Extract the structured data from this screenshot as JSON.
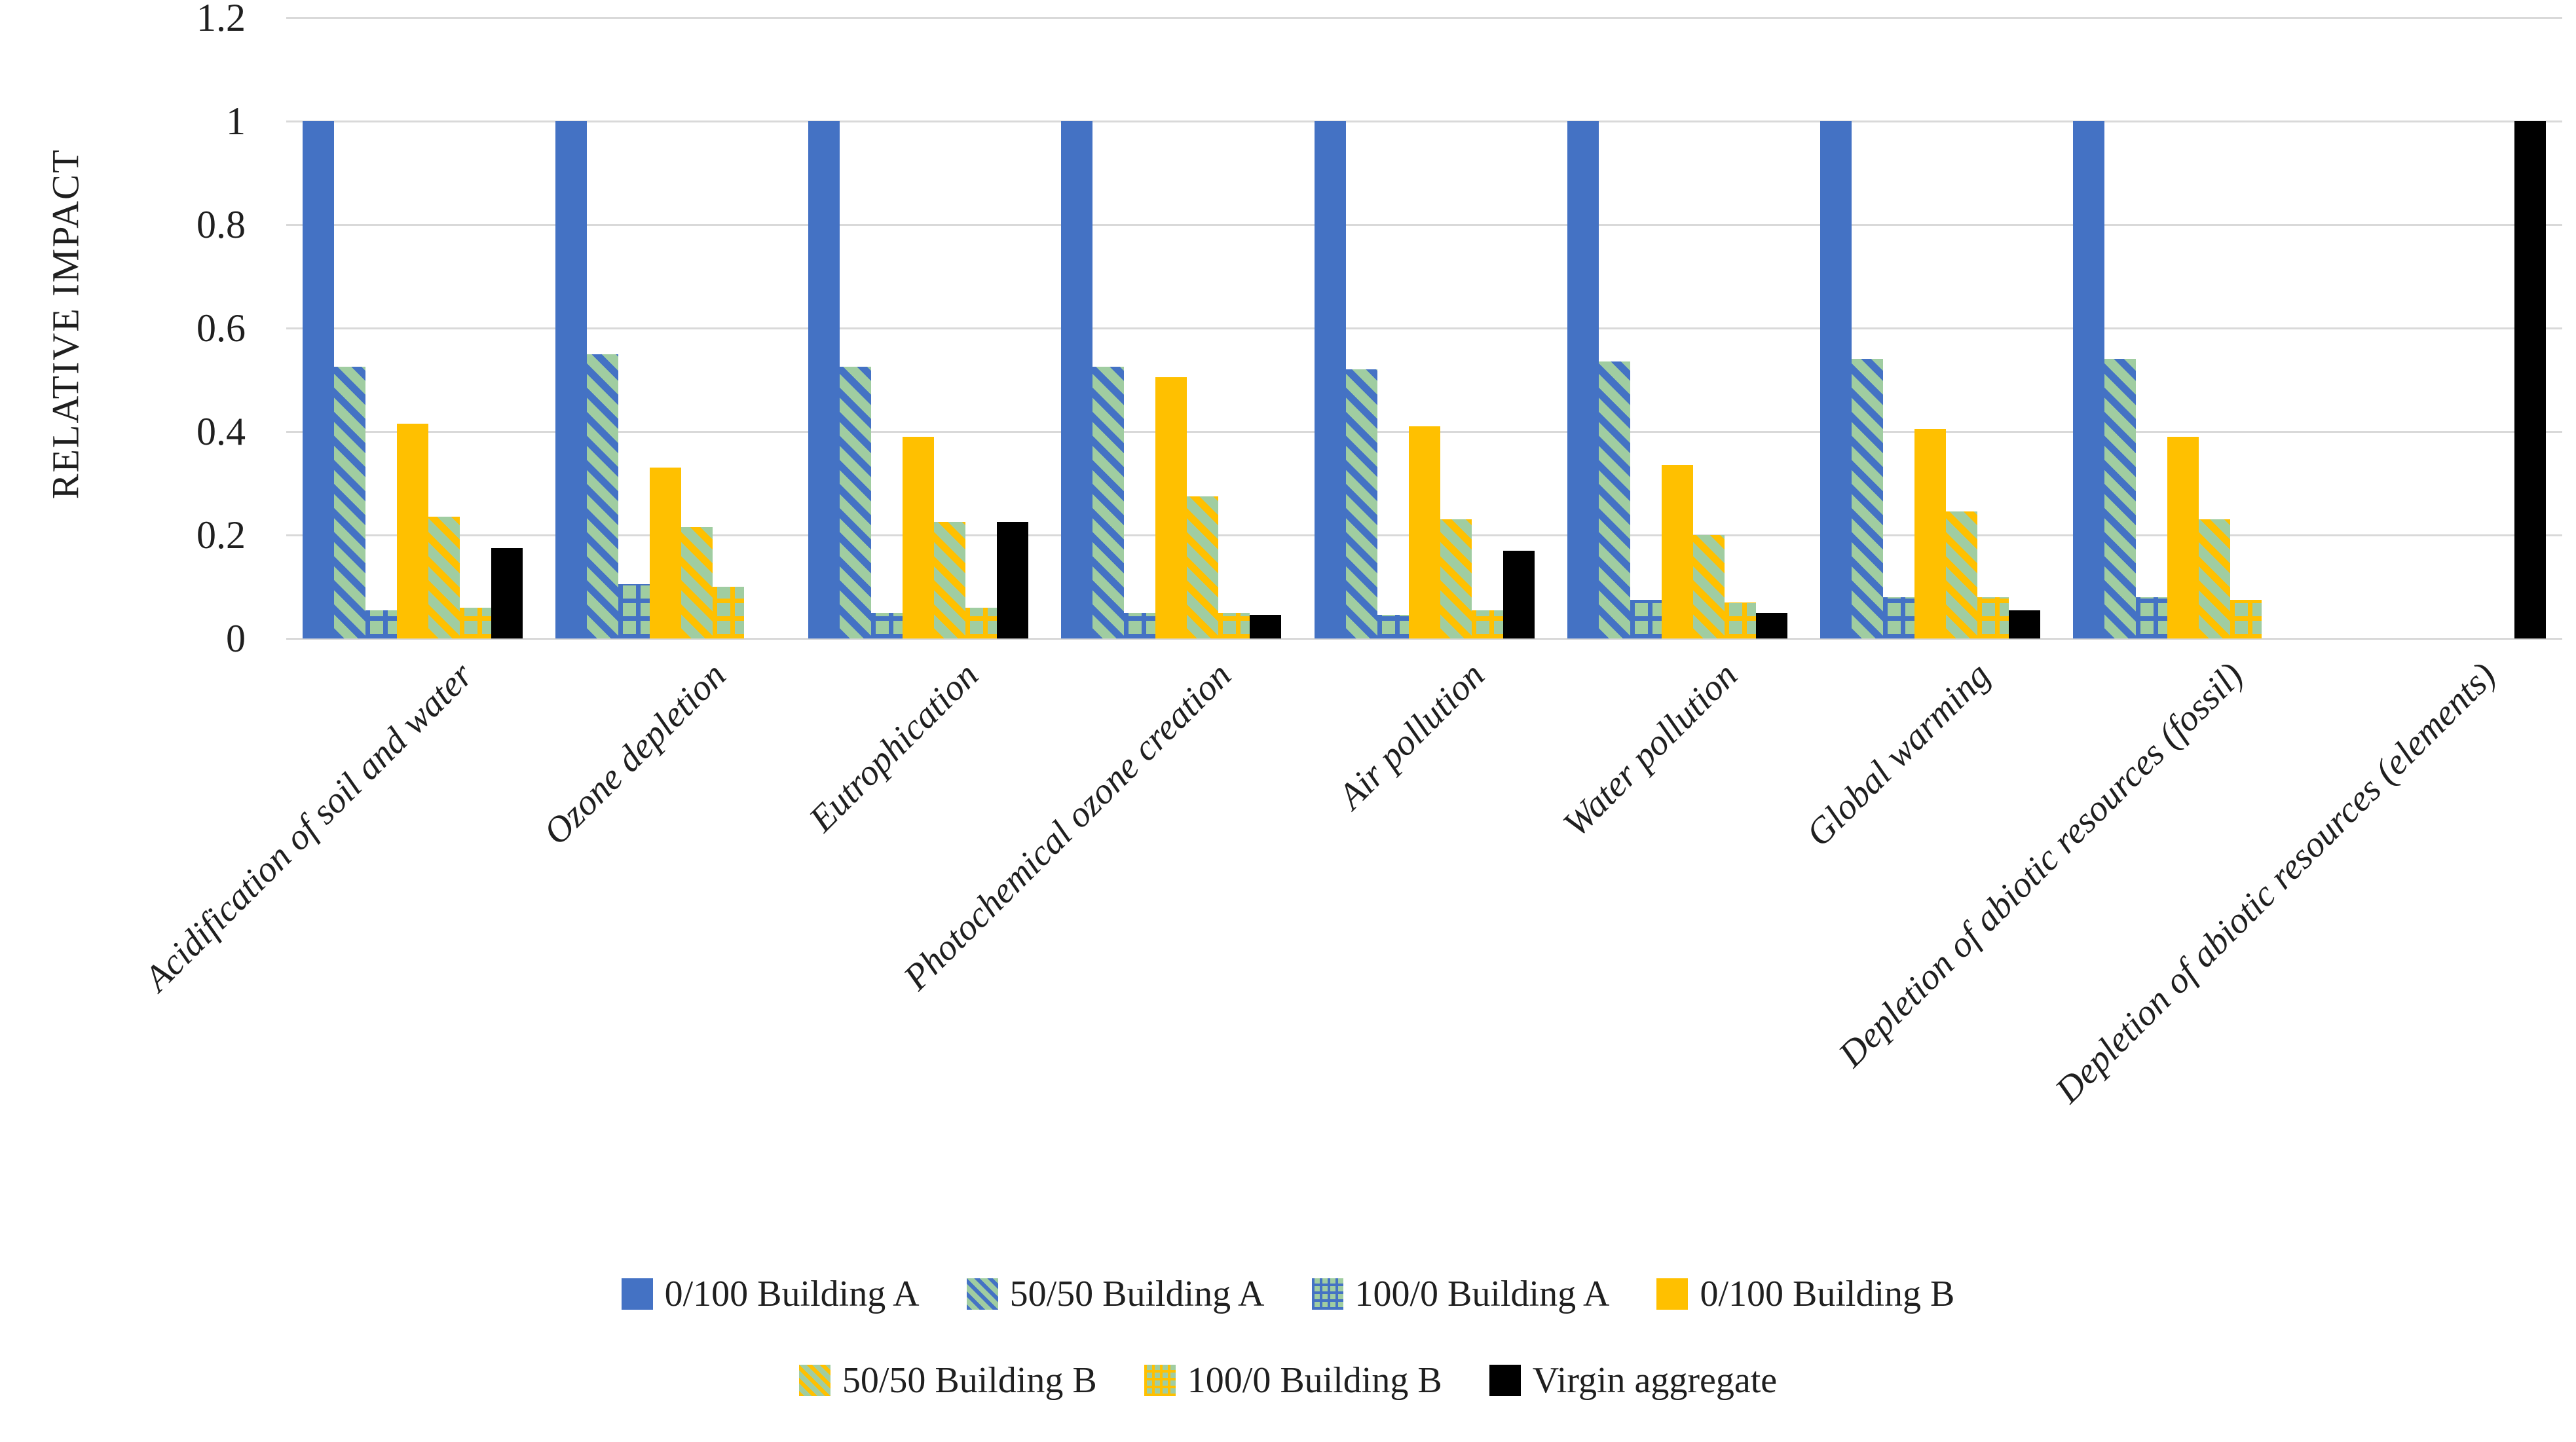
{
  "figure": {
    "background": "#FFFFFF",
    "text_color": "#1F1F1F",
    "gridline_color": "#D9D9D9"
  },
  "chart_data": {
    "type": "bar",
    "title": "",
    "xlabel": "",
    "ylabel": "RELATIVE IMPACT",
    "ylim": [
      0,
      1.2
    ],
    "grid": "horizontal",
    "legend_position": "bottom",
    "yticks": [
      {
        "label": "0",
        "value": 0
      },
      {
        "label": "0.2",
        "value": 0.2
      },
      {
        "label": "0.4",
        "value": 0.4
      },
      {
        "label": "0.6",
        "value": 0.6
      },
      {
        "label": "0.8",
        "value": 0.8
      },
      {
        "label": "1",
        "value": 1
      },
      {
        "label": "1.2",
        "value": 1.2
      }
    ],
    "categories": [
      "Acidification of soil and water",
      "Ozone depletion",
      "Eutrophication",
      "Photochemical ozone creation",
      "Air pollution",
      "Water pollution",
      "Global warming",
      "Depletion of abiotic resources (fossil)",
      "Depletion of abiotic resources (elements)"
    ],
    "series": [
      {
        "name": "0/100 Building A",
        "pattern": "solid",
        "color": "#4472C4",
        "values": [
          1,
          1,
          1,
          1,
          1,
          1,
          1,
          1,
          0
        ]
      },
      {
        "name": "50/50 Building A",
        "pattern": "diagonal-stripe",
        "fg": "#4472C4",
        "bg": "#A0CDA1",
        "values": [
          0.525,
          0.55,
          0.525,
          0.525,
          0.52,
          0.535,
          0.54,
          0.54,
          0
        ]
      },
      {
        "name": "100/0 Building A",
        "pattern": "grid",
        "fg": "#4472C4",
        "bg": "#A0CDA1",
        "values": [
          0.055,
          0.105,
          0.05,
          0.05,
          0.045,
          0.075,
          0.08,
          0.08,
          0
        ]
      },
      {
        "name": "0/100 Building B",
        "pattern": "solid",
        "color": "#FFC000",
        "values": [
          0.415,
          0.33,
          0.39,
          0.505,
          0.41,
          0.335,
          0.405,
          0.39,
          0
        ]
      },
      {
        "name": "50/50 Building B",
        "pattern": "diagonal-stripe",
        "fg": "#FFC000",
        "bg": "#A0CDA1",
        "values": [
          0.235,
          0.215,
          0.225,
          0.275,
          0.23,
          0.2,
          0.245,
          0.23,
          0
        ]
      },
      {
        "name": "100/0 Building B",
        "pattern": "grid",
        "fg": "#FFC000",
        "bg": "#A0CDA1",
        "values": [
          0.06,
          0.1,
          0.06,
          0.05,
          0.055,
          0.07,
          0.08,
          0.075,
          0
        ]
      },
      {
        "name": "Virgin aggregate",
        "pattern": "solid",
        "color": "#000000",
        "values": [
          0.175,
          0,
          0.225,
          0.045,
          0.17,
          0.05,
          0.055,
          0,
          1
        ]
      }
    ],
    "legend_rows": [
      [
        0,
        1,
        2,
        3
      ],
      [
        4,
        5,
        6
      ]
    ]
  }
}
